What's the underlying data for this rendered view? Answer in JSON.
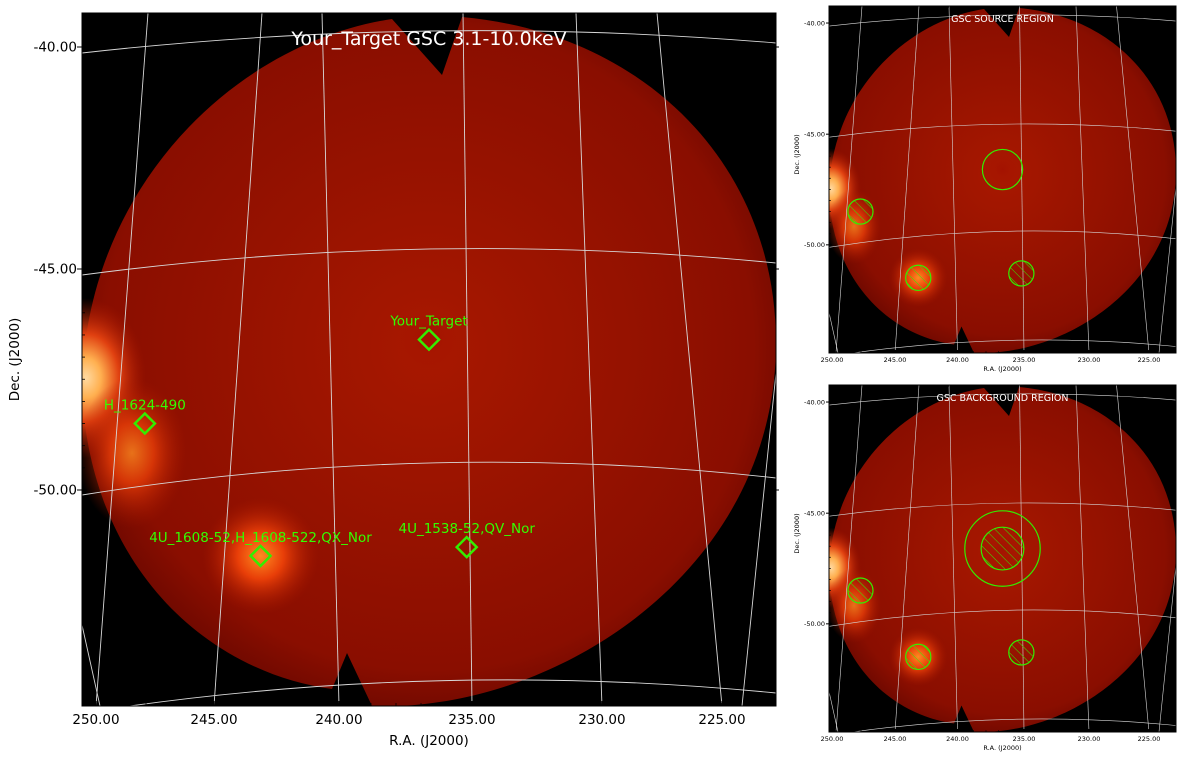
{
  "colors": {
    "region": "#33ee00",
    "sky_dark": "#8a0e00",
    "sky_mid": "#a81800",
    "bright": "#ffd9a0",
    "grid": "#d8d8d8"
  },
  "chart_data": [
    {
      "type": "heatmap",
      "panel": "main",
      "title": "Your_Target GSC 3.1-10.0keV",
      "xlabel": "R.A. (J2000)",
      "ylabel": "Dec. (J2000)",
      "xlim": [
        250.5,
        222.9
      ],
      "ylim": [
        -55.3,
        -39.6
      ],
      "xticks": [
        "250.00",
        "245.00",
        "240.00",
        "235.00",
        "230.00",
        "225.00"
      ],
      "yticks": [
        "-40.00",
        "-45.00",
        "-50.00"
      ],
      "grid": true,
      "sources": [
        {
          "name": "Your_Target",
          "ra": 236.7,
          "dec": -47.0
        },
        {
          "name": "H_1624-490",
          "ra": 248.0,
          "dec": -48.9
        },
        {
          "name": "4U_1608-52,H_1608-522,QX_Nor",
          "ra": 243.4,
          "dec": -51.9
        },
        {
          "name": "4U_1538-52,QV_Nor",
          "ra": 235.2,
          "dec": -51.7
        }
      ]
    },
    {
      "type": "heatmap",
      "panel": "source-region",
      "title": "GSC SOURCE REGION",
      "xlabel": "R.A. (J2000)",
      "ylabel": "Dec. (J2000)",
      "xlim": [
        250.5,
        222.9
      ],
      "ylim": [
        -55.3,
        -39.6
      ],
      "xticks": [
        "250.00",
        "245.00",
        "240.00",
        "235.00",
        "230.00",
        "225.00"
      ],
      "yticks": [
        "-40.00",
        "-45.00",
        "-50.00"
      ],
      "grid": true,
      "regions": [
        {
          "kind": "source",
          "ra": 236.7,
          "dec": -47.0,
          "radius_deg": 1.6
        },
        {
          "kind": "excluded",
          "ra": 248.0,
          "dec": -48.9,
          "radius_deg": 1.0
        },
        {
          "kind": "excluded",
          "ra": 243.4,
          "dec": -51.9,
          "radius_deg": 1.0
        },
        {
          "kind": "excluded",
          "ra": 235.2,
          "dec": -51.7,
          "radius_deg": 1.0
        }
      ]
    },
    {
      "type": "heatmap",
      "panel": "background-region",
      "title": "GSC BACKGROUND REGION",
      "xlabel": "R.A. (J2000)",
      "ylabel": "Dec. (J2000)",
      "xlim": [
        250.5,
        222.9
      ],
      "ylim": [
        -55.3,
        -39.6
      ],
      "xticks": [
        "250.00",
        "245.00",
        "240.00",
        "235.00",
        "230.00",
        "225.00"
      ],
      "yticks": [
        "-40.00",
        "-45.00",
        "-50.00"
      ],
      "grid": true,
      "regions": [
        {
          "kind": "annulus-outer",
          "ra": 236.7,
          "dec": -47.0,
          "radius_deg": 3.0
        },
        {
          "kind": "excluded",
          "ra": 236.7,
          "dec": -47.0,
          "radius_deg": 1.7
        },
        {
          "kind": "excluded",
          "ra": 248.0,
          "dec": -48.9,
          "radius_deg": 1.0
        },
        {
          "kind": "excluded",
          "ra": 243.4,
          "dec": -51.9,
          "radius_deg": 1.0
        },
        {
          "kind": "excluded",
          "ra": 235.2,
          "dec": -51.7,
          "radius_deg": 1.0
        }
      ]
    }
  ]
}
